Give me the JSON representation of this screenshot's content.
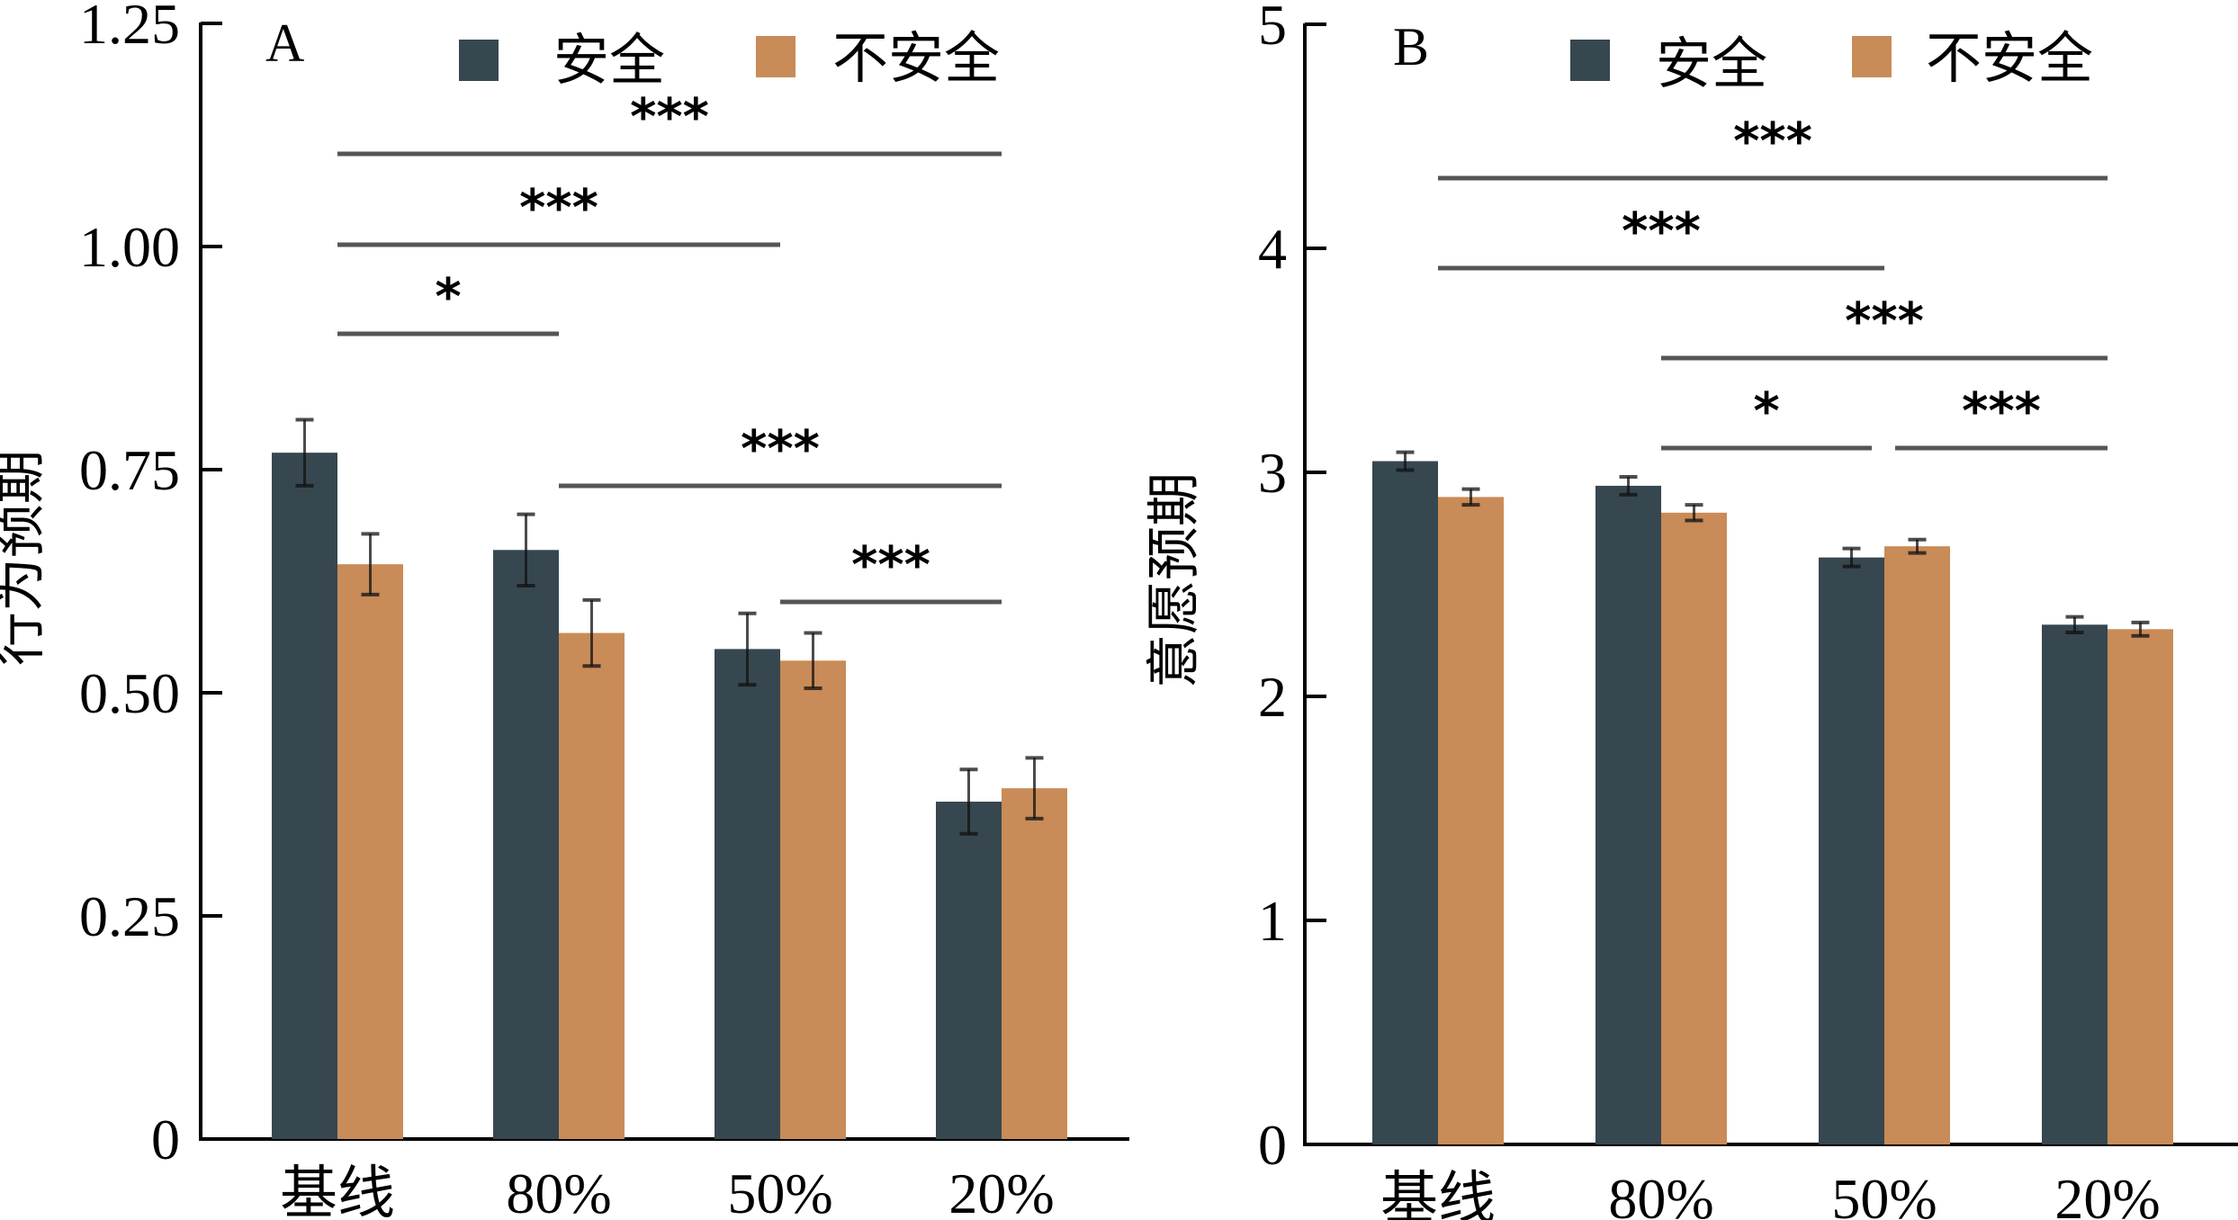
{
  "colors": {
    "safe": "#36474F",
    "unsafe": "#C98B57",
    "axis": "#000000",
    "sig_line": "#555555",
    "error_bar": "#111111"
  },
  "chart_data": [
    {
      "type": "bar",
      "panel_label": "A",
      "title": "",
      "xlabel": "",
      "ylabel": "行为预期",
      "categories": [
        "基线",
        "80%",
        "50%",
        "20%"
      ],
      "ylim": [
        0,
        1.25
      ],
      "yticks": [
        0,
        0.25,
        0.5,
        0.75,
        1.0,
        1.25
      ],
      "ytick_labels": [
        "0",
        "0.25",
        "0.50",
        "0.75",
        "1.00",
        "1.25"
      ],
      "grid": false,
      "legend": {
        "position": "top-center",
        "entries": [
          "安全",
          "不安全"
        ]
      },
      "series": [
        {
          "name": "安全",
          "values": [
            0.769,
            0.66,
            0.549,
            0.378
          ],
          "error": [
            0.037,
            0.04,
            0.04,
            0.036
          ]
        },
        {
          "name": "不安全",
          "values": [
            0.644,
            0.567,
            0.536,
            0.393
          ],
          "error": [
            0.034,
            0.037,
            0.031,
            0.034
          ]
        }
      ],
      "significance": [
        {
          "from": 0,
          "to": 3,
          "label": "***",
          "level": 1.15
        },
        {
          "from": 0,
          "to": 2,
          "label": "***",
          "level": 1.0
        },
        {
          "from": 0,
          "to": 1,
          "label": "*",
          "level": 0.9
        },
        {
          "from": 1,
          "to": 3,
          "label": "***",
          "level": 0.73
        },
        {
          "from": 2,
          "to": 3,
          "label": "***",
          "level": 0.6
        }
      ]
    },
    {
      "type": "bar",
      "panel_label": "B",
      "title": "",
      "xlabel": "",
      "ylabel": "意愿预期",
      "categories": [
        "基线",
        "80%",
        "50%",
        "20%"
      ],
      "ylim": [
        0,
        5
      ],
      "yticks": [
        0,
        1,
        2,
        3,
        4,
        5
      ],
      "ytick_labels": [
        "0",
        "1",
        "2",
        "3",
        "4",
        "5"
      ],
      "grid": false,
      "legend": {
        "position": "top-center",
        "entries": [
          "安全",
          "不安全"
        ]
      },
      "series": [
        {
          "name": "安全",
          "values": [
            3.05,
            2.94,
            2.62,
            2.32
          ],
          "error": [
            0.04,
            0.04,
            0.04,
            0.035
          ]
        },
        {
          "name": "不安全",
          "values": [
            2.89,
            2.82,
            2.67,
            2.3
          ],
          "error": [
            0.035,
            0.035,
            0.03,
            0.03
          ]
        }
      ],
      "significance": [
        {
          "from": 0,
          "to": 3,
          "label": "***",
          "level": 4.3
        },
        {
          "from": 0,
          "to": 2,
          "label": "***",
          "level": 3.9
        },
        {
          "from": 1,
          "to": 3,
          "label": "***",
          "level": 3.5
        },
        {
          "from": 1,
          "to": 2,
          "label": "*",
          "level": 3.1
        },
        {
          "from": 2,
          "to": 3,
          "label": "***",
          "level": 3.1
        }
      ]
    }
  ]
}
